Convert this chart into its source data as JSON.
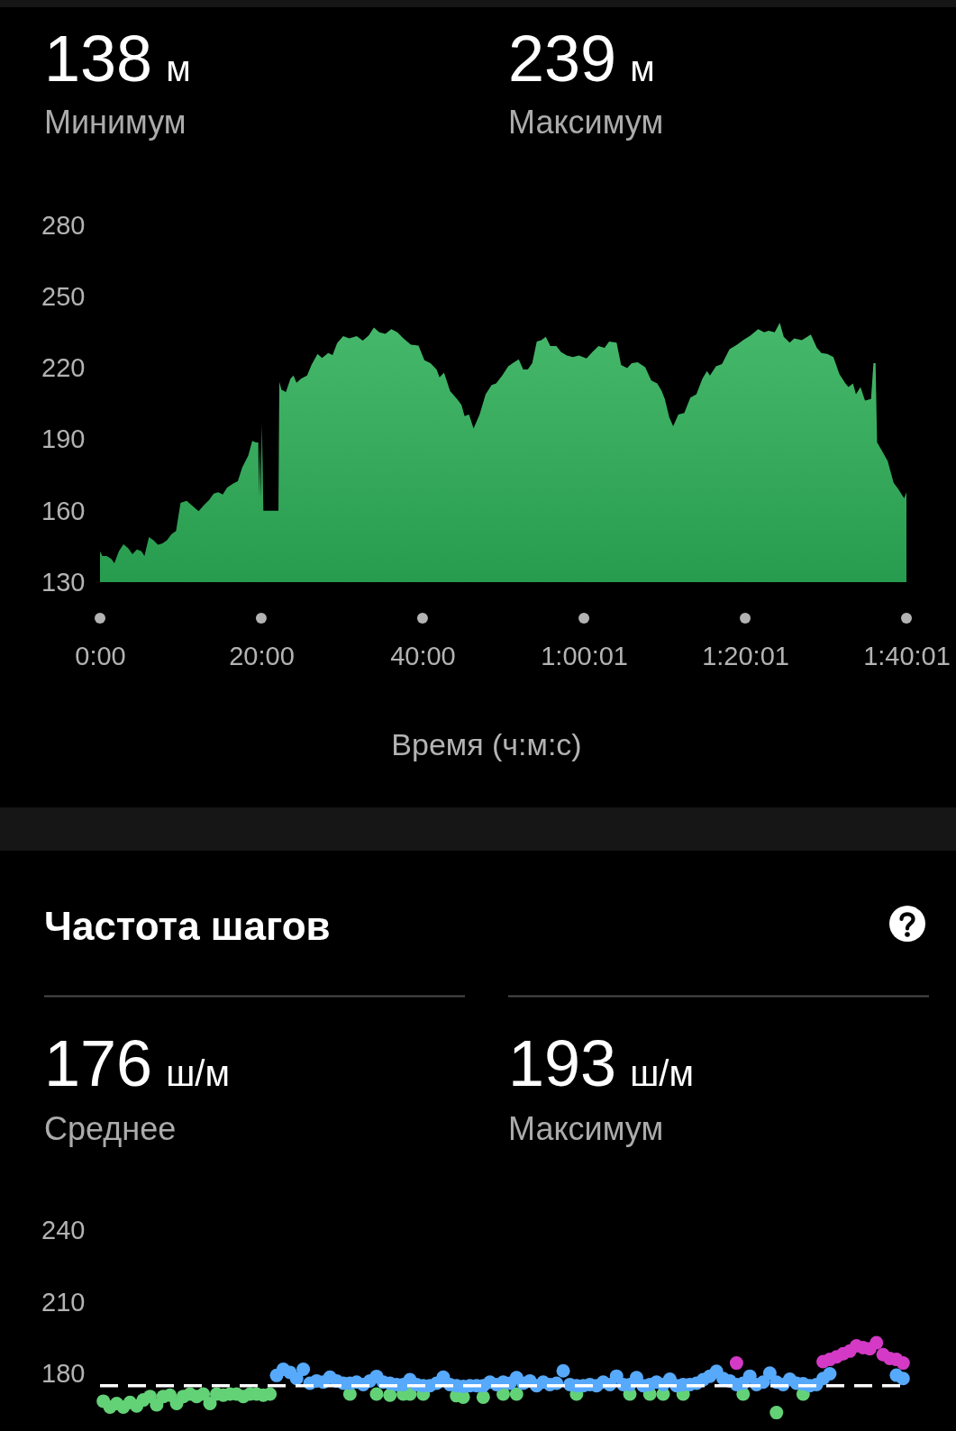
{
  "chart_data": [
    {
      "type": "area",
      "annotations": [
        "138 м",
        "Минимум",
        "239 м",
        "Максимум"
      ],
      "xlabel": "Время (ч:м:с)",
      "x": [
        0,
        0.28,
        0.84,
        1.4,
        1.78,
        2.34,
        2.9,
        3.46,
        4.02,
        4.58,
        5.14,
        5.51,
        6.07,
        6.63,
        7.19,
        7.75,
        8.31,
        8.87,
        9.43,
        9.99,
        10.74,
        11.48,
        12.23,
        12.79,
        13.54,
        14.1,
        14.66,
        15.22,
        15.78,
        16.53,
        17.09,
        17.65,
        18.39,
        18.88,
        19.33,
        19.63,
        19.7,
        19.81,
        19.93,
        20.08,
        20.26,
        22.13,
        22.24,
        22.5,
        23.06,
        23.62,
        24,
        24.37,
        24.93,
        25.68,
        26.24,
        26.98,
        27.54,
        28.29,
        28.85,
        29.41,
        30.16,
        30.91,
        31.84,
        32.59,
        33.33,
        33.97,
        34.64,
        35.39,
        36.13,
        36.88,
        37.63,
        38.56,
        39.5,
        40.24,
        40.99,
        41.74,
        42.11,
        42.67,
        43.42,
        44.28,
        44.84,
        45.21,
        45.77,
        46.33,
        47.08,
        47.83,
        48.57,
        49.13,
        49.88,
        50.63,
        51.19,
        51.93,
        52.49,
        53.05,
        53.61,
        54.17,
        54.73,
        55.29,
        55.85,
        56.6,
        57.16,
        57.91,
        58.65,
        59.4,
        60.34,
        61.08,
        61.83,
        62.58,
        63.14,
        64.07,
        64.63,
        65.38,
        65.94,
        66.69,
        67.62,
        68.37,
        69.11,
        69.67,
        70.05,
        70.61,
        71.09,
        71.73,
        72.47,
        73.22,
        73.97,
        74.71,
        75.28,
        75.65,
        76.4,
        77.14,
        78.08,
        79.01,
        79.76,
        80.69,
        81.63,
        82.37,
        82.93,
        83.68,
        84.31,
        84.8,
        85.54,
        86.11,
        87.04,
        88.16,
        88.91,
        89.47,
        90.21,
        90.96,
        91.71,
        92.45,
        92.83,
        93.39,
        93.76,
        94.32,
        94.88,
        95.63,
        95.93,
        96.19,
        96.38,
        96.94,
        97.69,
        98.43,
        98.99,
        99.74,
        100.02
      ],
      "values": [
        143,
        141,
        141,
        139.8,
        138,
        143,
        145.9,
        144.4,
        141.7,
        143.7,
        143,
        141,
        148.9,
        147.6,
        145.7,
        146.3,
        147.6,
        150.2,
        151.5,
        163.3,
        164.2,
        162,
        159.8,
        162,
        164.6,
        167.2,
        167.8,
        166.8,
        169.8,
        171.5,
        172.4,
        178.3,
        183.2,
        189.4,
        188.7,
        188.7,
        165.9,
        188.7,
        165.2,
        196.6,
        160,
        160,
        214.2,
        210.9,
        209.9,
        215.5,
        216.8,
        213.8,
        215.5,
        216.8,
        221.4,
        225.9,
        224.2,
        226.3,
        225.5,
        230.5,
        233.4,
        232.5,
        233.4,
        231.5,
        233.7,
        237,
        235,
        234.4,
        236.3,
        235,
        232.5,
        229.8,
        229.4,
        223.3,
        222,
        219.4,
        216.1,
        218.1,
        210.3,
        207,
        204.4,
        199.8,
        200.5,
        194.6,
        200.5,
        209,
        212.9,
        213.5,
        216.8,
        220.7,
        222,
        223.7,
        219.4,
        219.4,
        222,
        231.1,
        231.7,
        233.1,
        229.2,
        229.2,
        226.8,
        225.3,
        224.6,
        225.3,
        224,
        226.8,
        229.2,
        228.5,
        231.1,
        230.7,
        221.3,
        220,
        222,
        222.4,
        220.3,
        214.8,
        213.5,
        210.3,
        207,
        199.2,
        195.5,
        200.5,
        201.1,
        207.6,
        209,
        215.5,
        218.7,
        216.8,
        220.7,
        221.7,
        227.9,
        229.8,
        231.7,
        233.7,
        236.3,
        235,
        235.7,
        235,
        239,
        233.1,
        230.7,
        232.5,
        231.7,
        234.1,
        228.5,
        226.3,
        225.9,
        224.6,
        217.4,
        213.5,
        212,
        213.5,
        209,
        212,
        206.3,
        207,
        222,
        222,
        188.7,
        185.5,
        180.9,
        171.8,
        169.2,
        165.2,
        167.8
      ],
      "color": "#2dae57",
      "xlim": [
        0,
        100.02
      ],
      "xticks": [
        {
          "value": 0,
          "label": "0:00"
        },
        {
          "value": 20,
          "label": "20:00"
        },
        {
          "value": 40,
          "label": "40:00"
        },
        {
          "value": 60.02,
          "label": "1:00:01"
        },
        {
          "value": 80.02,
          "label": "1:20:01"
        },
        {
          "value": 100.02,
          "label": "1:40:01"
        }
      ],
      "ylim": [
        130,
        280
      ],
      "yticks": [
        130,
        160,
        190,
        220,
        250,
        280
      ]
    },
    {
      "type": "scatter",
      "title": "Частота шагов",
      "annotations": [
        "176 ш/м",
        "Среднее",
        "193 ш/м",
        "Максимум"
      ],
      "categories": [
        null,
        null,
        null,
        null,
        null,
        null,
        null,
        null,
        null,
        null,
        null,
        null,
        null,
        null,
        null,
        null,
        null,
        null,
        null,
        null,
        null,
        null,
        null,
        null,
        null,
        null,
        null,
        null,
        null,
        null,
        null,
        null,
        null,
        null,
        null,
        null,
        null,
        null,
        null,
        null,
        null,
        null,
        null,
        null,
        null,
        null,
        null,
        null,
        null,
        null,
        null,
        null,
        null,
        null,
        null,
        null,
        null,
        null,
        null,
        null,
        null,
        null,
        null,
        null,
        null,
        null,
        null,
        null,
        null,
        null,
        null,
        null,
        null,
        null,
        null,
        null,
        null,
        null,
        null,
        null,
        null,
        null,
        null,
        null,
        null,
        null,
        null,
        null,
        null,
        null,
        null,
        null,
        null,
        null,
        null,
        null,
        null,
        null,
        null,
        null,
        null,
        null,
        null,
        null,
        null,
        null,
        null,
        null,
        null,
        null,
        null,
        null,
        null,
        null,
        null,
        null,
        null,
        null,
        null,
        null,
        null
      ],
      "series": [
        {
          "color": "#63d277",
          "values": [
            168.5,
            166,
            167.5,
            166,
            168,
            166.5,
            169,
            170.5,
            167,
            170.5,
            171,
            167.5,
            170.5,
            171.5,
            170.5,
            171.5,
            167.5,
            171.5,
            171,
            171.5,
            171.5,
            170.5,
            171.5,
            171.5,
            171,
            171.5,
            null,
            null,
            null,
            null,
            null,
            null,
            null,
            null,
            null,
            null,
            null,
            171.5,
            null,
            null,
            null,
            171.5,
            null,
            171,
            null,
            171.5,
            171.5,
            null,
            171.5,
            null,
            null,
            null,
            null,
            170.8,
            170.2,
            null,
            null,
            170.2,
            null,
            null,
            171.5,
            null,
            171.5,
            null,
            null,
            null,
            null,
            null,
            null,
            null,
            null,
            171.5,
            null,
            null,
            null,
            null,
            null,
            null,
            null,
            171.5,
            null,
            null,
            171.5,
            null,
            171.5,
            null,
            null,
            171.5,
            null,
            null,
            null,
            null,
            null,
            null,
            null,
            null,
            171.5,
            null,
            null,
            null,
            null,
            163.7,
            null,
            null,
            null,
            171.5,
            null,
            null,
            null,
            null,
            null,
            null,
            null,
            null,
            null,
            null,
            null,
            null,
            null,
            null,
            null
          ]
        },
        {
          "color": "#57a9fb",
          "values": [
            null,
            null,
            null,
            null,
            null,
            null,
            null,
            null,
            null,
            null,
            null,
            null,
            null,
            null,
            null,
            null,
            null,
            null,
            null,
            null,
            null,
            null,
            null,
            null,
            null,
            null,
            179.3,
            181.9,
            180.6,
            178,
            181.9,
            176,
            177,
            176.5,
            178.6,
            177,
            176,
            176,
            176.5,
            175.5,
            177,
            178.9,
            176.5,
            176,
            175.5,
            175.5,
            177.5,
            175.5,
            175,
            175,
            176,
            178.6,
            175.5,
            175,
            174.7,
            175,
            175,
            175,
            176.5,
            175.5,
            176.5,
            176,
            178.4,
            176,
            177,
            175,
            176.5,
            175.5,
            176,
            181.2,
            175.5,
            175,
            175,
            175.5,
            175,
            176.5,
            175.5,
            179,
            175.5,
            175.5,
            178.4,
            175,
            175.5,
            176.5,
            175.5,
            177.7,
            175,
            175.5,
            175.5,
            176,
            177.5,
            179,
            181,
            178,
            177,
            175.5,
            176,
            179,
            175.5,
            176.5,
            180.3,
            176.5,
            175.5,
            177.7,
            176,
            175.8,
            175,
            175.5,
            178,
            180,
            null,
            null,
            null,
            null,
            null,
            null,
            null,
            null,
            null,
            179.4,
            178
          ]
        },
        {
          "color": "#d43ac6",
          "values": [
            null,
            null,
            null,
            null,
            null,
            null,
            null,
            null,
            null,
            null,
            null,
            null,
            null,
            null,
            null,
            null,
            null,
            null,
            null,
            null,
            null,
            null,
            null,
            null,
            null,
            null,
            null,
            null,
            null,
            null,
            null,
            null,
            null,
            null,
            null,
            null,
            null,
            null,
            null,
            null,
            null,
            null,
            null,
            null,
            null,
            null,
            null,
            null,
            null,
            null,
            null,
            null,
            null,
            null,
            null,
            null,
            null,
            null,
            null,
            null,
            null,
            null,
            null,
            null,
            null,
            null,
            null,
            null,
            null,
            null,
            null,
            null,
            null,
            null,
            null,
            null,
            null,
            null,
            null,
            null,
            null,
            null,
            null,
            null,
            null,
            null,
            null,
            null,
            null,
            null,
            null,
            null,
            null,
            null,
            null,
            184.5,
            null,
            null,
            null,
            null,
            null,
            null,
            null,
            null,
            null,
            null,
            null,
            null,
            185.1,
            186,
            187.1,
            188.4,
            189.5,
            191.7,
            191,
            190.5,
            193,
            188,
            186.4,
            186,
            184.5
          ]
        }
      ],
      "marker": "circle",
      "ylim": [
        156,
        240
      ],
      "yticks": [
        180,
        210,
        240
      ],
      "tick_labels": "y",
      "ref_lines": [
        {
          "axis": "y",
          "value": 175,
          "color": "#ffffff",
          "line_style": "dashed"
        }
      ]
    }
  ]
}
